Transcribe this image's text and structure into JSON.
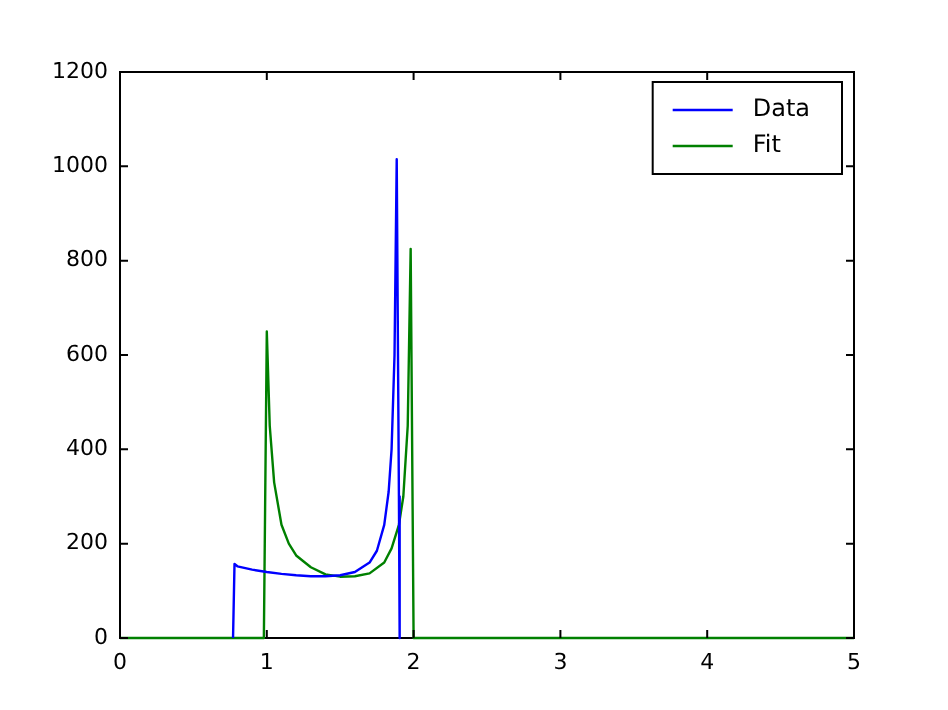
{
  "chart_data": {
    "type": "line",
    "series": [
      {
        "name": "Data",
        "color": "#0000ff",
        "x": [
          0.77,
          0.78,
          0.8,
          0.9,
          1.0,
          1.1,
          1.2,
          1.3,
          1.4,
          1.5,
          1.6,
          1.7,
          1.75,
          1.8,
          1.83,
          1.85,
          1.87,
          1.885,
          1.9,
          1.905
        ],
        "values": [
          0,
          157,
          152,
          145,
          140,
          136,
          133,
          131,
          131,
          133,
          140,
          160,
          185,
          240,
          310,
          400,
          600,
          1015,
          300,
          0
        ]
      },
      {
        "name": "Fit",
        "color": "#008000",
        "x": [
          0,
          0.98,
          1.0,
          1.02,
          1.05,
          1.1,
          1.15,
          1.2,
          1.3,
          1.4,
          1.5,
          1.6,
          1.7,
          1.8,
          1.85,
          1.9,
          1.93,
          1.96,
          1.98,
          2.0,
          5
        ],
        "values": [
          0,
          0,
          650,
          450,
          330,
          240,
          200,
          175,
          150,
          135,
          130,
          131,
          137,
          160,
          190,
          240,
          300,
          450,
          825,
          0,
          0
        ]
      }
    ],
    "xlim": [
      0,
      5
    ],
    "xticks": [
      0,
      1,
      2,
      3,
      4,
      5
    ],
    "ylim": [
      0,
      1200
    ],
    "yticks": [
      0,
      200,
      400,
      600,
      800,
      1000,
      1200
    ],
    "grid": false,
    "legend": "top right",
    "line_style": "solid",
    "marker": "none"
  }
}
